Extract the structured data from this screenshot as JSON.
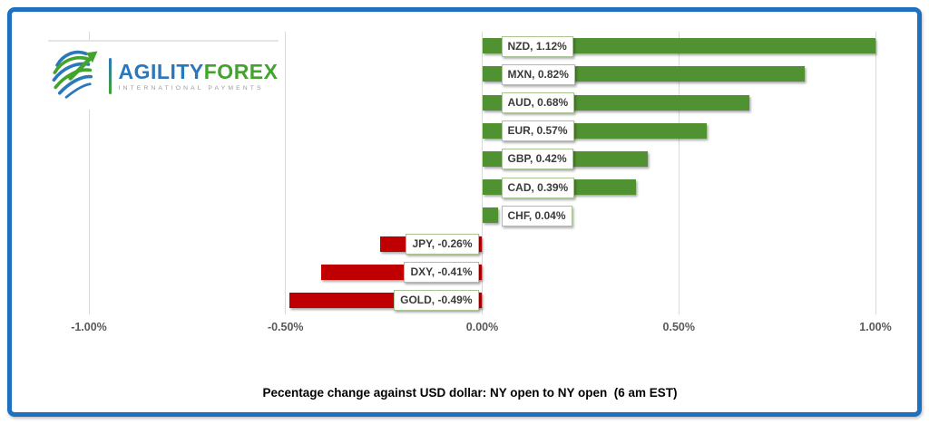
{
  "frame": {
    "border_color": "#1e70c1",
    "background": "#ffffff"
  },
  "logo": {
    "brand_part1": "AGILITY",
    "brand_part2": "FOREX",
    "tagline": "INTERNATIONAL PAYMENTS",
    "colors": {
      "blue": "#2b77bc",
      "green": "#42a32d",
      "tagline_gray": "#9b9b9b"
    }
  },
  "chart_data": {
    "type": "bar",
    "orientation": "horizontal",
    "categories": [
      "NZD",
      "MXN",
      "AUD",
      "EUR",
      "GBP",
      "CAD",
      "CHF",
      "JPY",
      "DXY",
      "GOLD"
    ],
    "values": [
      1.12,
      0.82,
      0.68,
      0.57,
      0.42,
      0.39,
      0.04,
      -0.26,
      -0.41,
      -0.49
    ],
    "data_labels": [
      "NZD, 1.12%",
      "MXN, 0.82%",
      "AUD, 0.68%",
      "EUR, 0.57%",
      "GBP, 0.42%",
      "CAD, 0.39%",
      "CHF, 0.04%",
      "JPY, -0.26%",
      "DXY, -0.41%",
      "GOLD, -0.49%"
    ],
    "xlim": [
      -1.0,
      1.0
    ],
    "x_ticks": [
      -1.0,
      -0.5,
      0.0,
      0.5,
      1.0
    ],
    "x_tick_labels": [
      "-1.00%",
      "-0.50%",
      "0.00%",
      "0.50%",
      "1.00%"
    ],
    "title": "Pecentage change against USD dollar: NY open to NY open  (6 am EST)",
    "positive_color": "#509132",
    "negative_color": "#c00000",
    "label_box_border": "#a9c493",
    "gridline_color": "#d9d9d9",
    "grid": true,
    "legend": "none"
  }
}
